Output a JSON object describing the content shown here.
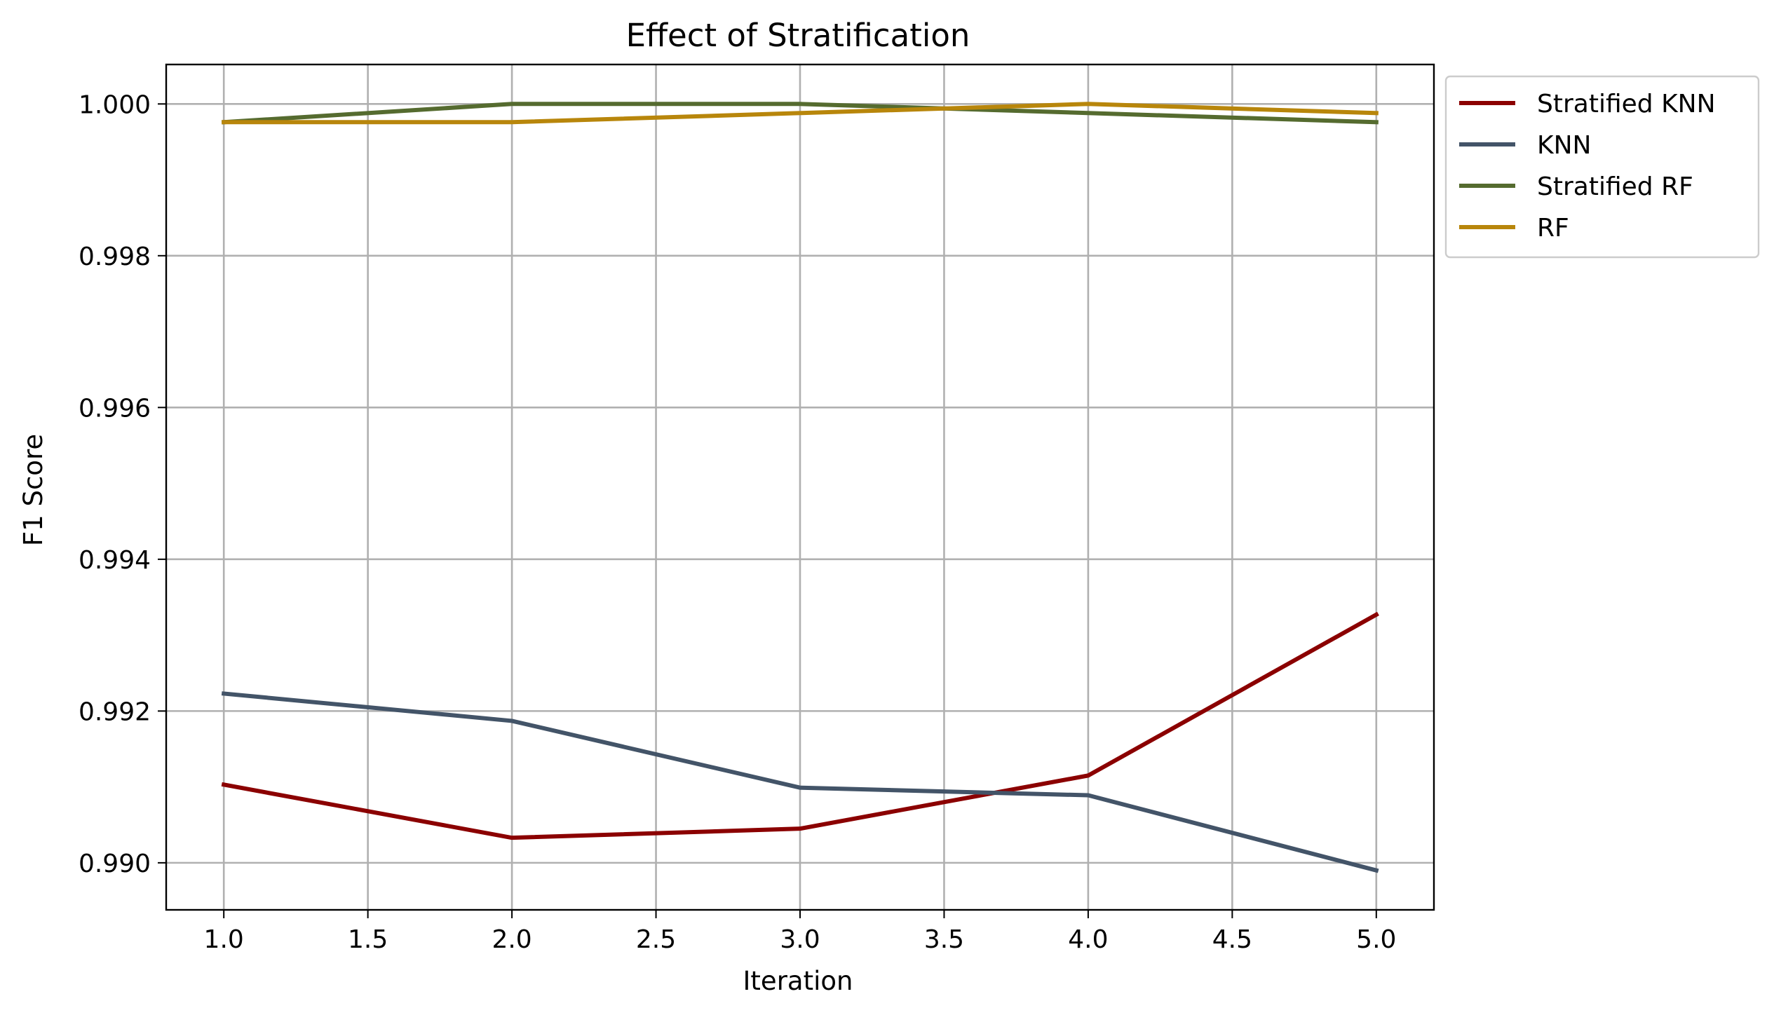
{
  "chart_data": {
    "type": "line",
    "title": "Effect of Stratification",
    "xlabel": "Iteration",
    "ylabel": "F1 Score",
    "x": [
      1,
      2,
      3,
      4,
      5
    ],
    "xlim": [
      0.8,
      5.2
    ],
    "ylim": [
      0.98938,
      1.00052
    ],
    "xticks": [
      1.0,
      1.5,
      2.0,
      2.5,
      3.0,
      3.5,
      4.0,
      4.5,
      5.0
    ],
    "xtick_labels": [
      "1.0",
      "1.5",
      "2.0",
      "2.5",
      "3.0",
      "3.5",
      "4.0",
      "4.5",
      "5.0"
    ],
    "yticks": [
      0.99,
      0.992,
      0.994,
      0.996,
      0.998,
      1.0
    ],
    "ytick_labels": [
      "0.990",
      "0.992",
      "0.994",
      "0.996",
      "0.998",
      "1.000"
    ],
    "grid": true,
    "legend_position": "outside-top-right",
    "series": [
      {
        "name": "Stratified KNN",
        "color": "#8b0000",
        "values": [
          0.99103,
          0.99033,
          0.99045,
          0.99115,
          0.99327
        ]
      },
      {
        "name": "KNN",
        "color": "#435468",
        "values": [
          0.99223,
          0.99187,
          0.99099,
          0.99089,
          0.9899
        ]
      },
      {
        "name": "Stratified RF",
        "color": "#556b2f",
        "values": [
          0.99976,
          1.0,
          1.0,
          0.99988,
          0.99976
        ]
      },
      {
        "name": "RF",
        "color": "#b8860b",
        "values": [
          0.99976,
          0.99976,
          0.99988,
          1.0,
          0.99988
        ]
      }
    ]
  }
}
